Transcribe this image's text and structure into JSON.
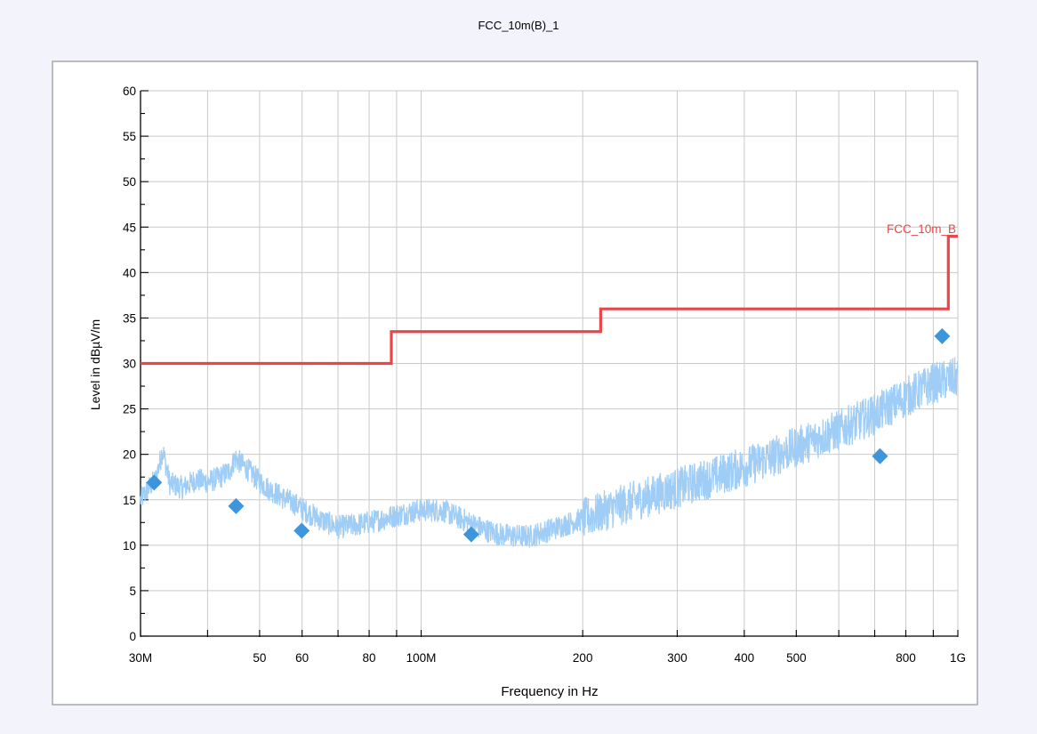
{
  "chart_data": {
    "type": "line",
    "title": "FCC_10m(B)_1",
    "xlabel": "Frequency in Hz",
    "ylabel": "Level in dBµV/m",
    "x_scale": "log",
    "xlim": [
      30000000,
      1000000000
    ],
    "ylim": [
      0,
      60
    ],
    "grid": true,
    "x_tick_labels": [
      {
        "value": 30000000,
        "label": "30M"
      },
      {
        "value": 50000000,
        "label": "50"
      },
      {
        "value": 60000000,
        "label": "60"
      },
      {
        "value": 80000000,
        "label": "80"
      },
      {
        "value": 100000000,
        "label": "100M"
      },
      {
        "value": 200000000,
        "label": "200"
      },
      {
        "value": 300000000,
        "label": "300"
      },
      {
        "value": 400000000,
        "label": "400"
      },
      {
        "value": 500000000,
        "label": "500"
      },
      {
        "value": 800000000,
        "label": "800"
      },
      {
        "value": 1000000000,
        "label": "1G"
      }
    ],
    "y_ticks": [
      0,
      5,
      10,
      15,
      20,
      25,
      30,
      35,
      40,
      45,
      50,
      55,
      60
    ],
    "series": [
      {
        "name": "FCC_10m_B",
        "kind": "limit",
        "color": "#e8474a",
        "x": [
          30000000,
          88000000,
          88000000,
          216000000,
          216000000,
          960000000,
          960000000,
          1000000000
        ],
        "y": [
          30,
          30,
          33.5,
          33.5,
          36,
          36,
          44,
          44
        ]
      },
      {
        "kind": "spectrum",
        "color": "#9fcdf6",
        "x": [
          30000000,
          31000000,
          32000000,
          33000000,
          34000000,
          36000000,
          38000000,
          40000000,
          42000000,
          44000000,
          45000000,
          47000000,
          50000000,
          52000000,
          55000000,
          58000000,
          60000000,
          65000000,
          70000000,
          75000000,
          80000000,
          90000000,
          100000000,
          110000000,
          120000000,
          130000000,
          140000000,
          150000000,
          160000000,
          180000000,
          200000000,
          230000000,
          260000000,
          300000000,
          350000000,
          400000000,
          450000000,
          500000000,
          600000000,
          700000000,
          800000000,
          900000000,
          1000000000
        ],
        "y": [
          15,
          16.2,
          17.2,
          20.5,
          16.8,
          16.3,
          17.2,
          17.0,
          17.4,
          18.2,
          19.6,
          18.6,
          17.0,
          16.2,
          15.3,
          14.6,
          14.0,
          12.8,
          12.0,
          12.2,
          12.5,
          13.3,
          13.9,
          13.8,
          12.8,
          11.8,
          11.2,
          11.0,
          11.0,
          12.0,
          12.9,
          14.2,
          15.2,
          16.3,
          17.5,
          18.6,
          19.7,
          20.8,
          22.7,
          24.4,
          26.3,
          27.8,
          28.5
        ],
        "noise_amplitude": 1.6
      }
    ],
    "markers": {
      "shape": "diamond",
      "color": "#3d96dc",
      "points": [
        {
          "x": 31800000,
          "y": 16.9
        },
        {
          "x": 45200000,
          "y": 14.3
        },
        {
          "x": 59900000,
          "y": 11.6
        },
        {
          "x": 124000000,
          "y": 11.2
        },
        {
          "x": 716000000,
          "y": 19.8
        },
        {
          "x": 935000000,
          "y": 33.0
        }
      ]
    }
  }
}
